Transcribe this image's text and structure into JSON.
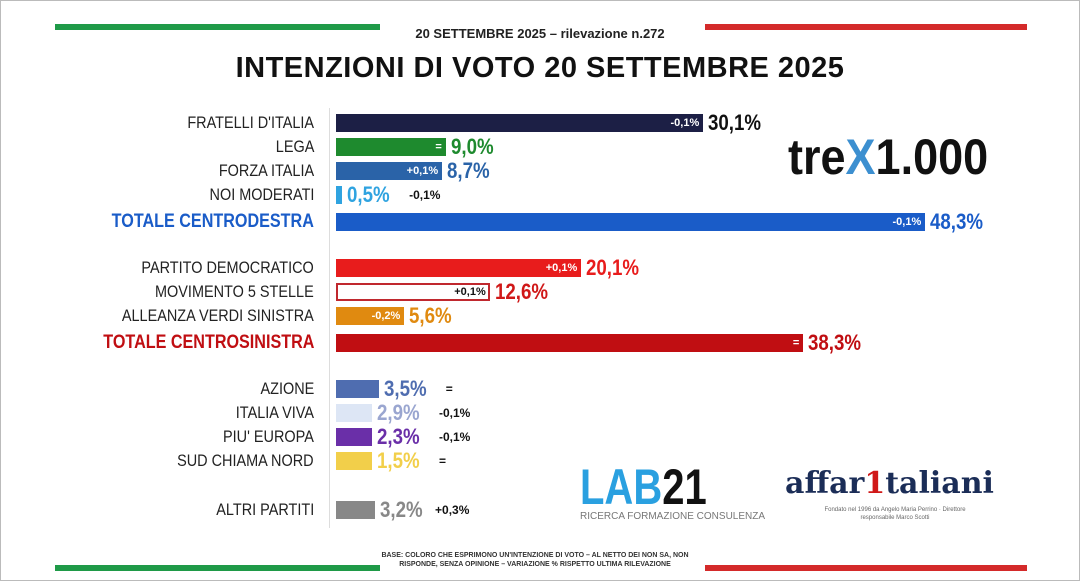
{
  "header": {
    "subtitle": "20 SETTEMBRE 2025 – rilevazione n.272",
    "title": "INTENZIONI DI VOTO 20 SETTEMBRE 2025"
  },
  "chart_data": {
    "type": "bar",
    "orientation": "horizontal",
    "unit": "%",
    "xlim": [
      0,
      50
    ],
    "categories": [
      "FRATELLI D'ITALIA",
      "LEGA",
      "FORZA ITALIA",
      "NOI MODERATI",
      "TOTALE CENTRODESTRA",
      "PARTITO DEMOCRATICO",
      "MOVIMENTO 5 STELLE",
      "ALLEANZA VERDI SINISTRA",
      "TOTALE CENTROSINISTRA",
      "AZIONE",
      "ITALIA VIVA",
      "PIU' EUROPA",
      "SUD CHIAMA NORD",
      "ALTRI PARTITI"
    ],
    "values": [
      30.1,
      9.0,
      8.7,
      0.5,
      48.3,
      20.1,
      12.6,
      5.6,
      38.3,
      3.5,
      2.9,
      2.3,
      1.5,
      3.2
    ],
    "value_labels": [
      "30,1%",
      "9,0%",
      "8,7%",
      "0,5%",
      "48,3%",
      "20,1%",
      "12,6%",
      "5,6%",
      "38,3%",
      "3,5%",
      "2,9%",
      "2,3%",
      "1,5%",
      "3,2%"
    ],
    "changes": [
      "-0,1%",
      "=",
      "+0,1%",
      "-0,1%",
      "-0,1%",
      "+0,1%",
      "+0,1%",
      "-0,2%",
      "=",
      "=",
      "-0,1%",
      "-0,1%",
      "=",
      "+0,3%"
    ],
    "bar_colors": [
      "#1c1f45",
      "#1e8a2e",
      "#2a63a8",
      "#2fa3e0",
      "#1a5cc8",
      "#e81c1c",
      "#ffffff",
      "#e08a10",
      "#c00e12",
      "#4f6db0",
      "#dde6f5",
      "#6a2fa8",
      "#f2cf4a",
      "#888888"
    ],
    "value_colors": [
      "#111111",
      "#1e8a2e",
      "#2a63a8",
      "#2fa3e0",
      "#1a5cc8",
      "#e81c1c",
      "#d01818",
      "#e08a10",
      "#c00e12",
      "#4f6db0",
      "#9aa6d0",
      "#6a2fa8",
      "#f2cf4a",
      "#888888"
    ],
    "totals": [
      "TOTALE CENTRODESTRA",
      "TOTALE CENTROSINISTRA"
    ]
  },
  "logos": {
    "trex_a": "tre",
    "trex_x": "X",
    "trex_b": "1.000",
    "lab_a": "LAB",
    "lab_b": "21",
    "lab_sub": "RICERCA FORMAZIONE CONSULENZA",
    "aff_a": "affar",
    "aff_one": "1",
    "aff_b": "taliani",
    "aff_sub": "Fondato nel 1996 da Angelo Maria Perrino · Direttore responsabile Marco Scotti"
  },
  "footer": {
    "note": "BASE: COLORO CHE ESPRIMONO UN'INTENZIONE DI VOTO – AL NETTO DEI NON SA, NON RISPONDE, SENZA OPINIONE – VARIAZIONE % RISPETTO ULTIMA RILEVAZIONE"
  }
}
